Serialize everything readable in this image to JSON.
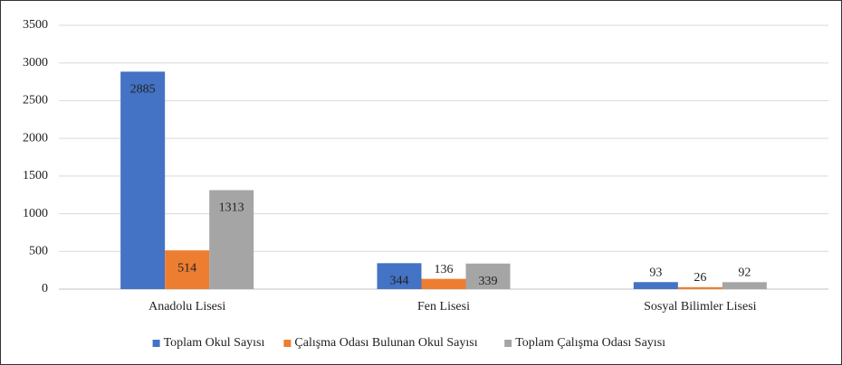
{
  "chart_data": {
    "type": "bar",
    "categories": [
      "Anadolu Lisesi",
      "Fen Lisesi",
      "Sosyal Bilimler Lisesi"
    ],
    "series": [
      {
        "name": "Toplam Okul Sayısı",
        "color": "#4472c4",
        "values": [
          2885,
          344,
          93
        ]
      },
      {
        "name": "Çalışma Odası Bulunan Okul Sayısı",
        "color": "#ed7d31",
        "values": [
          514,
          136,
          26
        ]
      },
      {
        "name": "Toplam Çalışma Odası Sayısı",
        "color": "#a5a5a5",
        "values": [
          1313,
          339,
          92
        ]
      }
    ],
    "ylim": [
      0,
      3500
    ],
    "yticks": [
      0,
      500,
      1000,
      1500,
      2000,
      2500,
      3000,
      3500
    ],
    "grid": true,
    "legend": "bottom",
    "data_labels": true
  }
}
